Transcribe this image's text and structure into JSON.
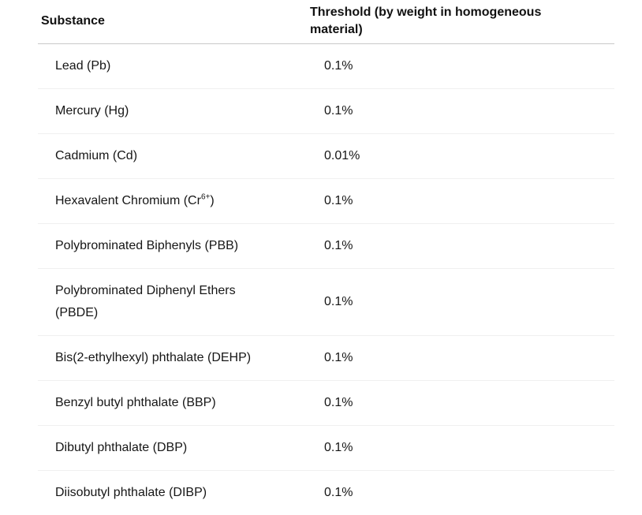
{
  "table": {
    "columns": [
      {
        "label": "Substance"
      },
      {
        "label": "Threshold (by weight in homogeneous material)"
      }
    ],
    "rows": [
      {
        "substance_pre": "Lead (Pb)",
        "substance_sup": "",
        "substance_post": "",
        "threshold": "0.1%"
      },
      {
        "substance_pre": "Mercury (Hg)",
        "substance_sup": "",
        "substance_post": "",
        "threshold": "0.1%"
      },
      {
        "substance_pre": "Cadmium (Cd)",
        "substance_sup": "",
        "substance_post": "",
        "threshold": "0.01%"
      },
      {
        "substance_pre": "Hexavalent Chromium (Cr",
        "substance_sup": "6+",
        "substance_post": ")",
        "threshold": "0.1%"
      },
      {
        "substance_pre": "Polybrominated Biphenyls (PBB)",
        "substance_sup": "",
        "substance_post": "",
        "threshold": "0.1%"
      },
      {
        "substance_pre": "Polybrominated Diphenyl Ethers (PBDE)",
        "substance_sup": "",
        "substance_post": "",
        "threshold": "0.1%"
      },
      {
        "substance_pre": "Bis(2-ethylhexyl) phthalate (DEHP)",
        "substance_sup": "",
        "substance_post": "",
        "threshold": "0.1%"
      },
      {
        "substance_pre": "Benzyl butyl phthalate (BBP)",
        "substance_sup": "",
        "substance_post": "",
        "threshold": "0.1%"
      },
      {
        "substance_pre": "Dibutyl phthalate (DBP)",
        "substance_sup": "",
        "substance_post": "",
        "threshold": "0.1%"
      },
      {
        "substance_pre": "Diisobutyl phthalate (DIBP)",
        "substance_sup": "",
        "substance_post": "",
        "threshold": "0.1%"
      }
    ],
    "colors": {
      "text": "#161616",
      "header_border": "#c9c9c9",
      "row_border": "#f0f0f0",
      "background": "#ffffff"
    }
  }
}
